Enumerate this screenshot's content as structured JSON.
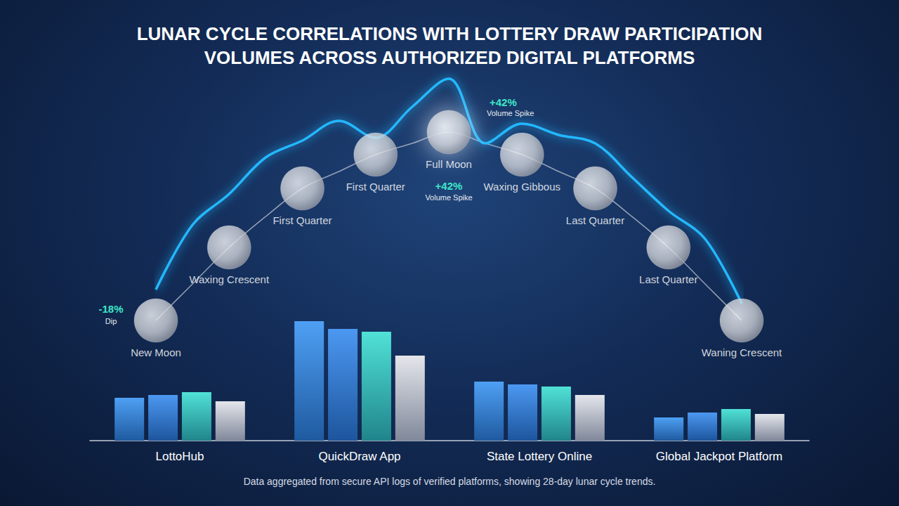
{
  "title": "LUNAR CYCLE CORRELATIONS WITH LOTTERY DRAW PARTICIPATION VOLUMES ACROSS AUTHORIZED DIGITAL PLATFORMS",
  "caption": "Data aggregated from secure API logs of verified platforms, showing 28-day lunar cycle trends.",
  "chart_data": [
    {
      "type": "line",
      "categories": [
        "New Moon",
        null,
        "Waxing Crescent",
        null,
        "First Quarter",
        null,
        "First Quarter",
        null,
        "Full Moon",
        null,
        "Waxing Gibbous",
        null,
        "Last Quarter",
        null,
        "Last Quarter",
        null,
        "Waning Crescent"
      ],
      "ylim": [
        0,
        100
      ],
      "tick_labels": false,
      "grid": false,
      "series": [
        {
          "type": "line",
          "color": "#aab3c2",
          "line_style": "thin",
          "values": [
            11,
            24,
            37,
            48,
            58,
            64,
            70,
            74,
            78,
            74,
            70,
            64,
            58,
            48,
            37,
            24,
            11
          ]
        },
        {
          "type": "line",
          "color": "#22b8ff",
          "line_style": "glow",
          "values": [
            22,
            45,
            56,
            69,
            75,
            82,
            76,
            87,
            97,
            74,
            81,
            77,
            74,
            62,
            50,
            40,
            17
          ]
        },
        {
          "type": "scatter",
          "color": "#cfd2d8",
          "marker": "moon",
          "values": [
            11,
            null,
            37,
            null,
            58,
            null,
            70,
            null,
            78,
            null,
            70,
            null,
            58,
            null,
            37,
            null,
            11
          ]
        }
      ],
      "annotations": [
        {
          "index": 0,
          "value": -18,
          "label": "-18%",
          "text": "Dip"
        },
        {
          "index": 8,
          "value": 42,
          "label": "+42%",
          "text": "Volume Spike"
        },
        {
          "index": 8,
          "value": 42,
          "label": "+42%",
          "text": "Volume Spike"
        }
      ]
    },
    {
      "type": "bar",
      "categories": [
        "LottoHub",
        "QuickDraw App",
        "State Lottery Online",
        "Global Jackpot Platform"
      ],
      "ylim": [
        0,
        200
      ],
      "tick_labels": "x",
      "grid": false,
      "series": [
        {
          "color": "#2f8ff2",
          "values": [
            61,
            170,
            84,
            33
          ]
        },
        {
          "color": "#2c86ee",
          "values": [
            65,
            159,
            80,
            40
          ]
        },
        {
          "color": "#31dccf",
          "values": [
            69,
            155,
            77,
            45
          ]
        },
        {
          "color": "#dfe2e8",
          "values": [
            56,
            121,
            65,
            38
          ]
        }
      ]
    }
  ]
}
